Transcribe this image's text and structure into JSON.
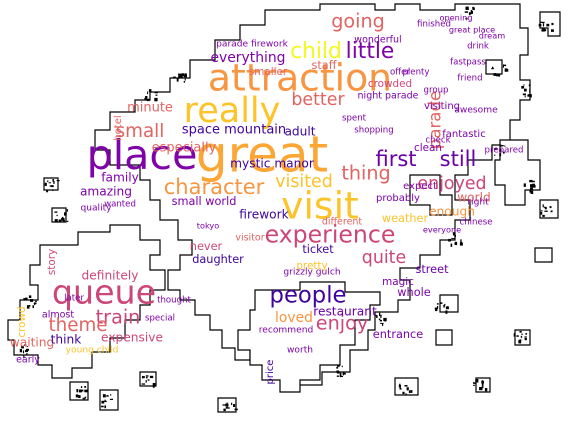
{
  "words": [
    {
      "text": "great",
      "color": "#fca636",
      "weight": 1.0
    },
    {
      "text": "place",
      "color": "#7e03a8",
      "weight": 0.8
    },
    {
      "text": "visit",
      "color": "#fdc328",
      "weight": 0.72
    },
    {
      "text": "attraction",
      "color": "#f89540",
      "weight": 0.72
    },
    {
      "text": "really",
      "color": "#fdc328",
      "weight": 0.66
    },
    {
      "text": "queue",
      "color": "#cc4778",
      "weight": 0.62
    },
    {
      "text": "experience",
      "color": "#cc4778",
      "weight": 0.4
    },
    {
      "text": "people",
      "color": "#3e049c",
      "weight": 0.38
    },
    {
      "text": "child",
      "color": "#f0f921",
      "weight": 0.36
    },
    {
      "text": "little",
      "color": "#7e03a8",
      "weight": 0.36
    },
    {
      "text": "first",
      "color": "#6a00a8",
      "weight": 0.34
    },
    {
      "text": "still",
      "color": "#6a00a8",
      "weight": 0.34
    },
    {
      "text": "character",
      "color": "#f89540",
      "weight": 0.34
    },
    {
      "text": "going",
      "color": "#e16462",
      "weight": 0.3
    },
    {
      "text": "thing",
      "color": "#e16462",
      "weight": 0.3
    },
    {
      "text": "train",
      "color": "#cc4778",
      "weight": 0.3
    },
    {
      "text": "enjoy",
      "color": "#cc4778",
      "weight": 0.3
    },
    {
      "text": "theme",
      "color": "#e16462",
      "weight": 0.28
    },
    {
      "text": "small",
      "color": "#e16462",
      "weight": 0.28
    },
    {
      "text": "better",
      "color": "#e16462",
      "weight": 0.26
    },
    {
      "text": "visited",
      "color": "#fdc328",
      "weight": 0.26
    },
    {
      "text": "enjoyed",
      "color": "#cc4778",
      "weight": 0.26
    },
    {
      "text": "quite",
      "color": "#cc4778",
      "weight": 0.26
    },
    {
      "text": "parade",
      "color": "#e16462",
      "weight": 0.24
    },
    {
      "text": "loved",
      "color": "#f89540",
      "weight": 0.18
    },
    {
      "text": "everything",
      "color": "#7e03a8",
      "weight": 0.18
    },
    {
      "text": "space mountain",
      "color": "#3e049c",
      "weight": 0.16
    },
    {
      "text": "minute",
      "color": "#e16462",
      "weight": 0.16
    },
    {
      "text": "especially",
      "color": "#e16462",
      "weight": 0.16
    },
    {
      "text": "family",
      "color": "#7e03a8",
      "weight": 0.14
    },
    {
      "text": "amazing",
      "color": "#7e03a8",
      "weight": 0.14
    },
    {
      "text": "mystic manor",
      "color": "#3e049c",
      "weight": 0.14
    },
    {
      "text": "adult",
      "color": "#3e049c",
      "weight": 0.14
    },
    {
      "text": "world",
      "color": "#e16462",
      "weight": 0.14
    },
    {
      "text": "enough",
      "color": "#f89540",
      "weight": 0.14
    },
    {
      "text": "firework",
      "color": "#3e049c",
      "weight": 0.14
    },
    {
      "text": "small world",
      "color": "#7e03a8",
      "weight": 0.12
    },
    {
      "text": "definitely",
      "color": "#cc4778",
      "weight": 0.14
    },
    {
      "text": "expensive",
      "color": "#cc4778",
      "weight": 0.14
    },
    {
      "text": "waiting",
      "color": "#e16462",
      "weight": 0.14
    },
    {
      "text": "think",
      "color": "#3e049c",
      "weight": 0.14
    },
    {
      "text": "daughter",
      "color": "#3e049c",
      "weight": 0.12
    },
    {
      "text": "never",
      "color": "#cc4778",
      "weight": 0.12
    },
    {
      "text": "restaurant",
      "color": "#6a00a8",
      "weight": 0.14
    },
    {
      "text": "street",
      "color": "#6a00a8",
      "weight": 0.12
    },
    {
      "text": "ticket",
      "color": "#3e049c",
      "weight": 0.12
    },
    {
      "text": "whole",
      "color": "#7e03a8",
      "weight": 0.12
    },
    {
      "text": "entrance",
      "color": "#7e03a8",
      "weight": 0.12
    },
    {
      "text": "staff",
      "color": "#e16462",
      "weight": 0.12
    },
    {
      "text": "weather",
      "color": "#fdc328",
      "weight": 0.12
    },
    {
      "text": "crowded",
      "color": "#cc4778",
      "weight": 0.1
    },
    {
      "text": "smaller",
      "color": "#e16462",
      "weight": 0.1
    },
    {
      "text": "pretty",
      "color": "#fdc328",
      "weight": 0.1
    },
    {
      "text": "magic",
      "color": "#7e03a8",
      "weight": 0.1
    },
    {
      "text": "clean",
      "color": "#7e03a8",
      "weight": 0.1
    },
    {
      "text": "expect",
      "color": "#7e03a8",
      "weight": 0.09
    },
    {
      "text": "probably",
      "color": "#7e03a8",
      "weight": 0.09
    },
    {
      "text": "fantastic",
      "color": "#7e03a8",
      "weight": 0.09
    },
    {
      "text": "visiting",
      "color": "#7e03a8",
      "weight": 0.09
    },
    {
      "text": "wonderful",
      "color": "#7e03a8",
      "weight": 0.08
    },
    {
      "text": "price",
      "color": "#3e049c",
      "weight": 0.09
    },
    {
      "text": "story",
      "color": "#cc4778",
      "weight": 0.1
    },
    {
      "text": "crowd",
      "color": "#fdc328",
      "weight": 0.1
    },
    {
      "text": "hotel",
      "color": "#e16462",
      "weight": 0.09
    },
    {
      "text": "visitor",
      "color": "#e16462",
      "weight": 0.08
    },
    {
      "text": "different",
      "color": "#e16462",
      "weight": 0.08
    },
    {
      "text": "early",
      "color": "#7e03a8",
      "weight": 0.08
    },
    {
      "text": "almost",
      "color": "#7e03a8",
      "weight": 0.08
    },
    {
      "text": "night parade",
      "color": "#7e03a8",
      "weight": 0.08
    },
    {
      "text": "parade firework",
      "color": "#7e03a8",
      "weight": 0.07
    },
    {
      "text": "recommend",
      "color": "#7e03a8",
      "weight": 0.07
    },
    {
      "text": "young child",
      "color": "#fdc328",
      "weight": 0.07
    },
    {
      "text": "quality",
      "color": "#7e03a8",
      "weight": 0.07
    },
    {
      "text": "worth",
      "color": "#7e03a8",
      "weight": 0.07
    },
    {
      "text": "right",
      "color": "#7e03a8",
      "weight": 0.07
    },
    {
      "text": "grizzly gulch",
      "color": "#7e03a8",
      "weight": 0.07
    },
    {
      "text": "awesome",
      "color": "#7e03a8",
      "weight": 0.07
    },
    {
      "text": "shopping",
      "color": "#7e03a8",
      "weight": 0.06
    },
    {
      "text": "check",
      "color": "#7e03a8",
      "weight": 0.06
    },
    {
      "text": "later",
      "color": "#7e03a8",
      "weight": 0.06
    },
    {
      "text": "wanted",
      "color": "#7e03a8",
      "weight": 0.06
    },
    {
      "text": "thought",
      "color": "#7e03a8",
      "weight": 0.06
    },
    {
      "text": "special",
      "color": "#7e03a8",
      "weight": 0.06
    },
    {
      "text": "spent",
      "color": "#7e03a8",
      "weight": 0.06
    },
    {
      "text": "offer",
      "color": "#7e03a8",
      "weight": 0.06
    },
    {
      "text": "group",
      "color": "#7e03a8",
      "weight": 0.06
    },
    {
      "text": "friend",
      "color": "#7e03a8",
      "weight": 0.06
    },
    {
      "text": "drink",
      "color": "#7e03a8",
      "weight": 0.06
    },
    {
      "text": "chinese",
      "color": "#7e03a8",
      "weight": 0.06
    },
    {
      "text": "plenty",
      "color": "#7e03a8",
      "weight": 0.06
    },
    {
      "text": "finished",
      "color": "#7e03a8",
      "weight": 0.06
    },
    {
      "text": "prepared",
      "color": "#7e03a8",
      "weight": 0.06
    },
    {
      "text": "fastpass",
      "color": "#7e03a8",
      "weight": 0.06
    },
    {
      "text": "great place",
      "color": "#7e03a8",
      "weight": 0.05
    },
    {
      "text": "tokyo",
      "color": "#7e03a8",
      "weight": 0.05
    },
    {
      "text": "everyone",
      "color": "#7e03a8",
      "weight": 0.05
    },
    {
      "text": "opening",
      "color": "#7e03a8",
      "weight": 0.05
    },
    {
      "text": "dream",
      "color": "#7e03a8",
      "weight": 0.05
    }
  ]
}
